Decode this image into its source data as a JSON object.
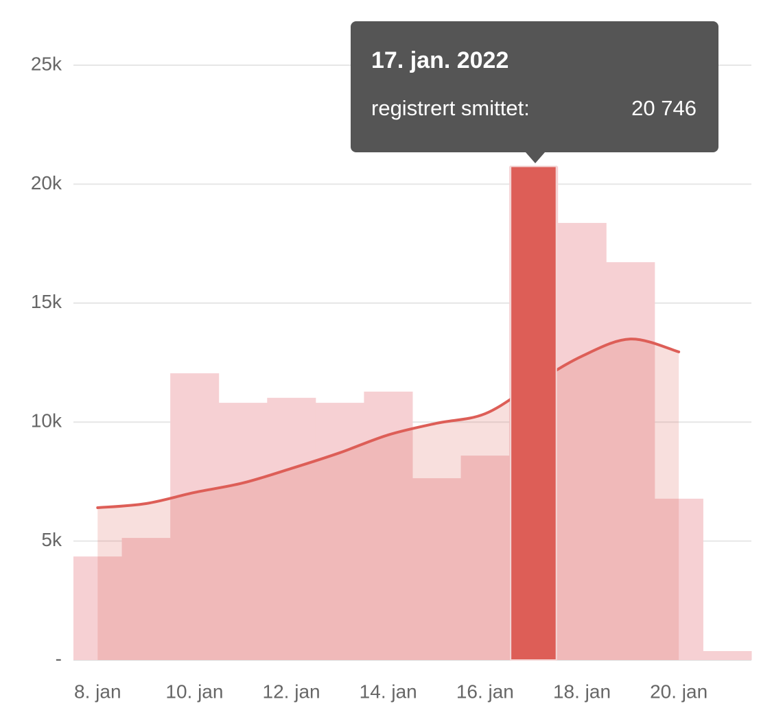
{
  "chart_data": {
    "type": "bar",
    "categories": [
      "8. jan",
      null,
      "10. jan",
      null,
      "12. jan",
      null,
      "14. jan",
      null,
      "16. jan",
      null,
      "18. jan",
      null,
      "20. jan",
      null
    ],
    "series": [
      {
        "type": "bar",
        "color": "#f6d0d3",
        "values": [
          4350,
          5130,
          12050,
          10810,
          11020,
          10810,
          11280,
          7640,
          8590,
          20746,
          18370,
          16720,
          6780,
          375
        ],
        "value_labels": [
          null,
          null,
          null,
          null,
          null,
          null,
          null,
          null,
          null,
          "20 746",
          null,
          null,
          null,
          null
        ]
      },
      {
        "type": "area-line",
        "color": "#dd5e57",
        "values": [
          6400,
          6575,
          7040,
          7440,
          8050,
          8710,
          9460,
          9950,
          10350,
          11590,
          12770,
          13490,
          12950,
          null
        ]
      }
    ],
    "highlight": 9,
    "highlight_color": "#dd5e57",
    "tooltip": {
      "title": "17. jan. 2022",
      "label": "registrert smittet:"
    },
    "ylim": [
      0,
      25000
    ],
    "yticks": [
      {
        "value": 0,
        "label": "-"
      },
      {
        "value": 5000,
        "label": "5k"
      },
      {
        "value": 10000,
        "label": "10k"
      },
      {
        "value": 15000,
        "label": "15k"
      },
      {
        "value": 20000,
        "label": "20k"
      },
      {
        "value": 25000,
        "label": "25k"
      }
    ],
    "grid": true
  }
}
